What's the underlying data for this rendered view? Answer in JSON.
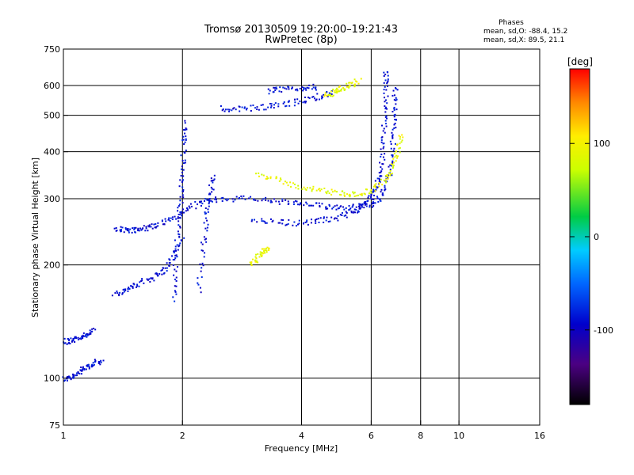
{
  "chart_data": {
    "type": "scatter",
    "title": "Tromsø 20130509 19:20:00–19:21:43",
    "subtitle": "RwPretec (8p)",
    "xlabel": "Frequency [MHz]",
    "ylabel": "Stationary phase Virtual Height [km]",
    "x_scale": "log",
    "y_scale": "log",
    "xlim": [
      1,
      16
    ],
    "ylim": [
      75,
      750
    ],
    "x_ticks": [
      1,
      2,
      4,
      6,
      8,
      10,
      16
    ],
    "x_tick_labels": [
      "1",
      "2",
      "4",
      "6",
      "8",
      "10",
      "16"
    ],
    "x_grid": [
      2,
      4,
      6,
      8,
      10
    ],
    "y_ticks": [
      75,
      100,
      200,
      300,
      400,
      500,
      600,
      750
    ],
    "y_tick_labels": [
      "75",
      "100",
      "200",
      "300",
      "400",
      "500",
      "600",
      "750"
    ],
    "y_grid": [
      100,
      200,
      300,
      400,
      500,
      600
    ],
    "grid": true,
    "stats": {
      "heading": "Phases",
      "line1": "mean, sd,O: -88.4, 15.2",
      "line2": "mean, sd,X: 89.5, 21.1"
    },
    "colorbar": {
      "label": "[deg]",
      "range": [
        -180,
        180
      ],
      "ticks": [
        100,
        0,
        -100
      ],
      "tick_labels": [
        "100",
        "0",
        "-100"
      ],
      "colormap": "rainbow"
    },
    "o_mode": {
      "phase_mean": -88.4,
      "phase_sd": 15.2,
      "traces": [
        {
          "name": "",
          "points": [
            [
              1.0,
              99
            ],
            [
              1.05,
              101
            ],
            [
              1.1,
              104
            ],
            [
              1.15,
              107
            ],
            [
              1.2,
              110
            ],
            [
              1.25,
              111
            ]
          ]
        },
        {
          "name": "",
          "points": [
            [
              1.0,
              125
            ],
            [
              1.05,
              126
            ],
            [
              1.1,
              128
            ],
            [
              1.15,
              131
            ],
            [
              1.2,
              134
            ]
          ]
        },
        {
          "name": "",
          "points": [
            [
              1.35,
              168
            ],
            [
              1.45,
              172
            ],
            [
              1.55,
              178
            ],
            [
              1.7,
              186
            ],
            [
              1.8,
              194
            ],
            [
              1.9,
              210
            ],
            [
              2.0,
              240
            ]
          ]
        },
        {
          "name": "",
          "points": [
            [
              1.35,
              250
            ],
            [
              1.45,
              248
            ],
            [
              1.55,
              248
            ],
            [
              1.65,
              252
            ],
            [
              1.8,
              260
            ],
            [
              1.95,
              270
            ],
            [
              2.1,
              285
            ],
            [
              2.3,
              297
            ],
            [
              2.6,
              300
            ],
            [
              3.0,
              300
            ],
            [
              3.5,
              295
            ],
            [
              4.0,
              290
            ],
            [
              4.5,
              287
            ],
            [
              5.0,
              285
            ],
            [
              5.5,
              285
            ],
            [
              6.0,
              290
            ],
            [
              6.3,
              300
            ],
            [
              6.6,
              330
            ],
            [
              6.75,
              380
            ],
            [
              6.85,
              450
            ],
            [
              6.9,
              520
            ],
            [
              6.9,
              600
            ]
          ]
        },
        {
          "name": "",
          "points": [
            [
              3.0,
              265
            ],
            [
              3.5,
              260
            ],
            [
              4.0,
              258
            ],
            [
              4.5,
              263
            ],
            [
              5.0,
              268
            ],
            [
              5.5,
              280
            ],
            [
              5.8,
              290
            ],
            [
              6.0,
              305
            ],
            [
              6.2,
              325
            ],
            [
              6.35,
              360
            ],
            [
              6.45,
              420
            ],
            [
              6.5,
              500
            ],
            [
              6.55,
              600
            ],
            [
              6.55,
              650
            ]
          ]
        },
        {
          "name": "",
          "points": [
            [
              2.5,
              520
            ],
            [
              2.8,
              520
            ],
            [
              3.2,
              525
            ],
            [
              3.6,
              535
            ],
            [
              4.0,
              545
            ],
            [
              4.4,
              560
            ],
            [
              4.8,
              575
            ]
          ]
        },
        {
          "name": "",
          "points": [
            [
              3.3,
              580
            ],
            [
              3.6,
              585
            ],
            [
              4.0,
              590
            ],
            [
              4.4,
              595
            ]
          ]
        },
        {
          "name": "",
          "points": [
            [
              1.9,
              160
            ],
            [
              1.92,
              200
            ],
            [
              1.95,
              250
            ],
            [
              1.98,
              300
            ],
            [
              2.0,
              350
            ],
            [
              2.02,
              420
            ],
            [
              2.05,
              480
            ]
          ]
        },
        {
          "name": "",
          "points": [
            [
              2.2,
              170
            ],
            [
              2.25,
              220
            ],
            [
              2.3,
              270
            ],
            [
              2.35,
              310
            ],
            [
              2.4,
              350
            ]
          ]
        }
      ]
    },
    "x_mode": {
      "phase_mean": 89.5,
      "phase_sd": 21.1,
      "traces": [
        {
          "name": "",
          "points": [
            [
              3.1,
              350
            ],
            [
              3.5,
              335
            ],
            [
              4.0,
              322
            ],
            [
              4.5,
              315
            ],
            [
              5.0,
              310
            ],
            [
              5.5,
              308
            ],
            [
              6.0,
              315
            ],
            [
              6.5,
              335
            ],
            [
              6.8,
              360
            ],
            [
              7.0,
              400
            ],
            [
              7.2,
              450
            ]
          ]
        },
        {
          "name": "",
          "points": [
            [
              3.0,
              200
            ],
            [
              3.1,
              210
            ],
            [
              3.2,
              218
            ],
            [
              3.3,
              222
            ]
          ]
        },
        {
          "name": "",
          "points": [
            [
              4.6,
              560
            ],
            [
              4.8,
              575
            ],
            [
              5.0,
              585
            ],
            [
              5.3,
              600
            ],
            [
              5.6,
              620
            ]
          ]
        }
      ]
    }
  }
}
